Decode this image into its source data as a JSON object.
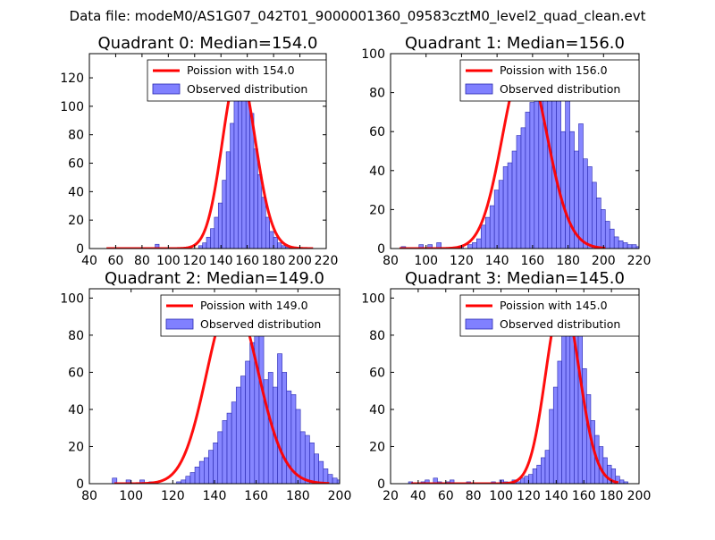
{
  "figure": {
    "suptitle": "Data file: modeM0/AS1G07_042T01_9000001360_09583cztM0_level2_quad_clean.evt"
  },
  "colors": {
    "bar_fill": "#8080ff",
    "bar_edge": "#2828b0",
    "poisson_line": "#ff0000"
  },
  "chart_data": [
    {
      "type": "bar",
      "title": "Quadrant 0: Median=154.0",
      "xlabel": "",
      "ylabel": "",
      "xlim": [
        40,
        220
      ],
      "ylim": [
        0,
        137
      ],
      "xticks": [
        40,
        60,
        80,
        100,
        120,
        140,
        160,
        180,
        200,
        220
      ],
      "yticks": [
        0,
        20,
        40,
        60,
        80,
        100,
        120
      ],
      "legend": {
        "location": "top-right",
        "entries": [
          "Poission with 154.0",
          "Observed distribution"
        ]
      },
      "histogram": {
        "name": "Observed distribution",
        "bin_start": 90,
        "bin_width": 3,
        "counts": [
          3,
          0,
          0,
          0,
          0,
          0,
          0,
          0,
          0,
          0,
          0,
          2,
          4,
          8,
          14,
          22,
          32,
          48,
          68,
          88,
          110,
          120,
          122,
          105,
          95,
          70,
          52,
          36,
          22,
          12,
          8,
          4,
          2,
          1
        ]
      },
      "poisson": {
        "name": "Poission with 154.0",
        "mean": 154.0,
        "x_start": 53,
        "x_end": 210,
        "peak": 126
      }
    },
    {
      "type": "bar",
      "title": "Quadrant 1: Median=156.0",
      "xlabel": "",
      "ylabel": "",
      "xlim": [
        80,
        220
      ],
      "ylim": [
        0,
        100
      ],
      "xticks": [
        80,
        100,
        120,
        140,
        160,
        180,
        200,
        220
      ],
      "yticks": [
        0,
        20,
        40,
        60,
        80,
        100
      ],
      "legend": {
        "location": "top-right",
        "entries": [
          "Poission with 156.0",
          "Observed distribution"
        ]
      },
      "histogram": {
        "name": "Observed distribution",
        "bin_start": 86,
        "bin_width": 2.5,
        "counts": [
          1,
          0,
          0,
          0,
          2,
          0,
          2,
          0,
          3,
          0,
          0,
          0,
          0,
          1,
          0,
          2,
          3,
          5,
          12,
          16,
          22,
          30,
          35,
          42,
          44,
          50,
          58,
          62,
          70,
          75,
          80,
          84,
          92,
          88,
          96,
          78,
          60,
          80,
          60,
          50,
          64,
          46,
          42,
          34,
          26,
          20,
          14,
          10,
          6,
          4,
          3,
          2,
          2,
          1
        ]
      },
      "poisson": {
        "name": "Poission with 156.0",
        "mean": 156.0,
        "x_start": 85,
        "x_end": 201,
        "peak": 96
      }
    },
    {
      "type": "bar",
      "title": "Quadrant 2: Median=149.0",
      "xlabel": "",
      "ylabel": "",
      "xlim": [
        80,
        200
      ],
      "ylim": [
        0,
        105
      ],
      "xticks": [
        80,
        100,
        120,
        140,
        160,
        180,
        200
      ],
      "yticks": [
        0,
        20,
        40,
        60,
        80,
        100
      ],
      "legend": {
        "location": "top-right",
        "entries": [
          "Poission with 149.0",
          "Observed distribution"
        ]
      },
      "histogram": {
        "name": "Observed distribution",
        "bin_start": 91,
        "bin_width": 2.2,
        "counts": [
          3,
          0,
          0,
          2,
          0,
          0,
          2,
          0,
          1,
          0,
          0,
          0,
          0,
          0,
          1,
          2,
          4,
          6,
          9,
          12,
          14,
          18,
          22,
          28,
          34,
          38,
          44,
          52,
          58,
          66,
          76,
          100,
          92,
          56,
          60,
          52,
          70,
          60,
          50,
          48,
          40,
          28,
          26,
          22,
          16,
          12,
          8,
          5,
          3,
          2,
          1,
          0,
          0,
          0,
          0
        ]
      },
      "poisson": {
        "name": "Poission with 149.0",
        "mean": 149.0,
        "x_start": 92,
        "x_end": 195,
        "peak": 100
      }
    },
    {
      "type": "bar",
      "title": "Quadrant 3: Median=145.0",
      "xlabel": "",
      "ylabel": "",
      "xlim": [
        20,
        200
      ],
      "ylim": [
        0,
        105
      ],
      "xticks": [
        20,
        40,
        60,
        80,
        100,
        120,
        140,
        160,
        180,
        200
      ],
      "yticks": [
        0,
        20,
        40,
        60,
        80,
        100
      ],
      "legend": {
        "location": "top-right",
        "entries": [
          "Poission with 145.0",
          "Observed distribution"
        ]
      },
      "histogram": {
        "name": "Observed distribution",
        "bin_start": 33,
        "bin_width": 3,
        "counts": [
          1,
          0,
          0,
          1,
          2,
          0,
          3,
          1,
          0,
          1,
          2,
          0,
          0,
          0,
          1,
          0,
          0,
          0,
          0,
          0,
          1,
          0,
          2,
          1,
          0,
          2,
          1,
          3,
          4,
          5,
          8,
          10,
          14,
          18,
          40,
          52,
          66,
          80,
          86,
          100,
          96,
          82,
          62,
          48,
          34,
          26,
          20,
          14,
          10,
          8,
          4,
          2,
          1
        ]
      },
      "poisson": {
        "name": "Poission with 145.0",
        "mean": 145.0,
        "x_start": 35,
        "x_end": 185,
        "peak": 100
      }
    }
  ]
}
